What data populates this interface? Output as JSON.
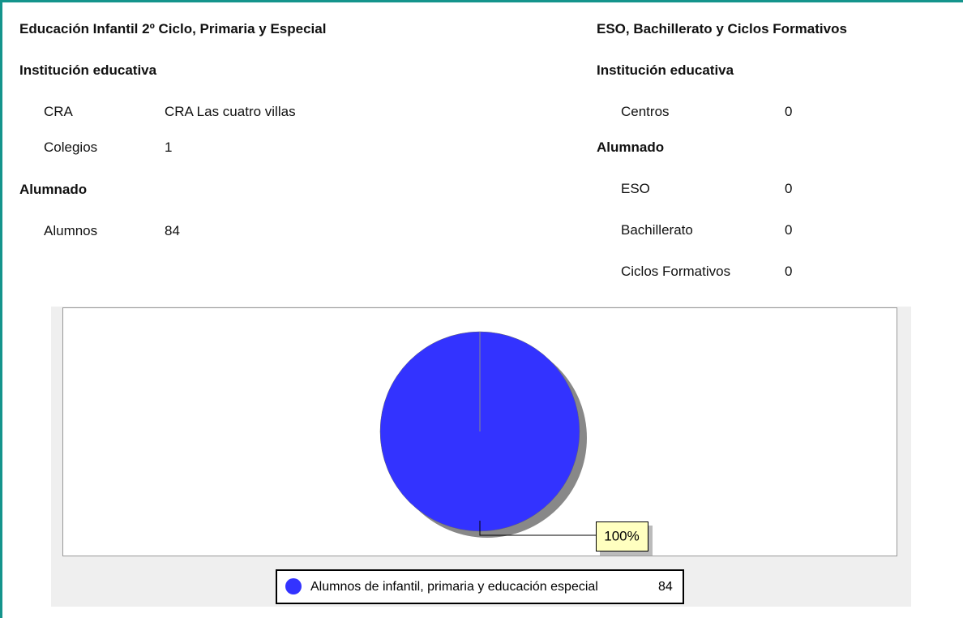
{
  "left": {
    "title": "Educación Infantil 2º Ciclo, Primaria y Especial",
    "sections": [
      {
        "heading": "Institución educativa",
        "rows": [
          [
            "CRA",
            "CRA Las cuatro villas"
          ],
          [
            "Colegios",
            "1"
          ]
        ]
      },
      {
        "heading": "Alumnado",
        "rows": [
          [
            "Alumnos",
            "84"
          ]
        ]
      }
    ]
  },
  "right": {
    "title": "ESO, Bachillerato y Ciclos Formativos",
    "sections": [
      {
        "heading": "Institución educativa",
        "rows": [
          [
            "Centros",
            "0"
          ]
        ]
      },
      {
        "heading": "Alumnado",
        "rows": [
          [
            "ESO",
            "0"
          ],
          [
            "Bachillerato",
            "0"
          ],
          [
            "Ciclos Formativos",
            "0"
          ]
        ]
      }
    ]
  },
  "chart_data": {
    "type": "pie",
    "categories": [
      "Alumnos de infantil, primaria y educación especial"
    ],
    "values": [
      84
    ],
    "value_labels": [
      "100%"
    ],
    "colors": [
      "#3333ff"
    ],
    "legend": "bottom"
  }
}
